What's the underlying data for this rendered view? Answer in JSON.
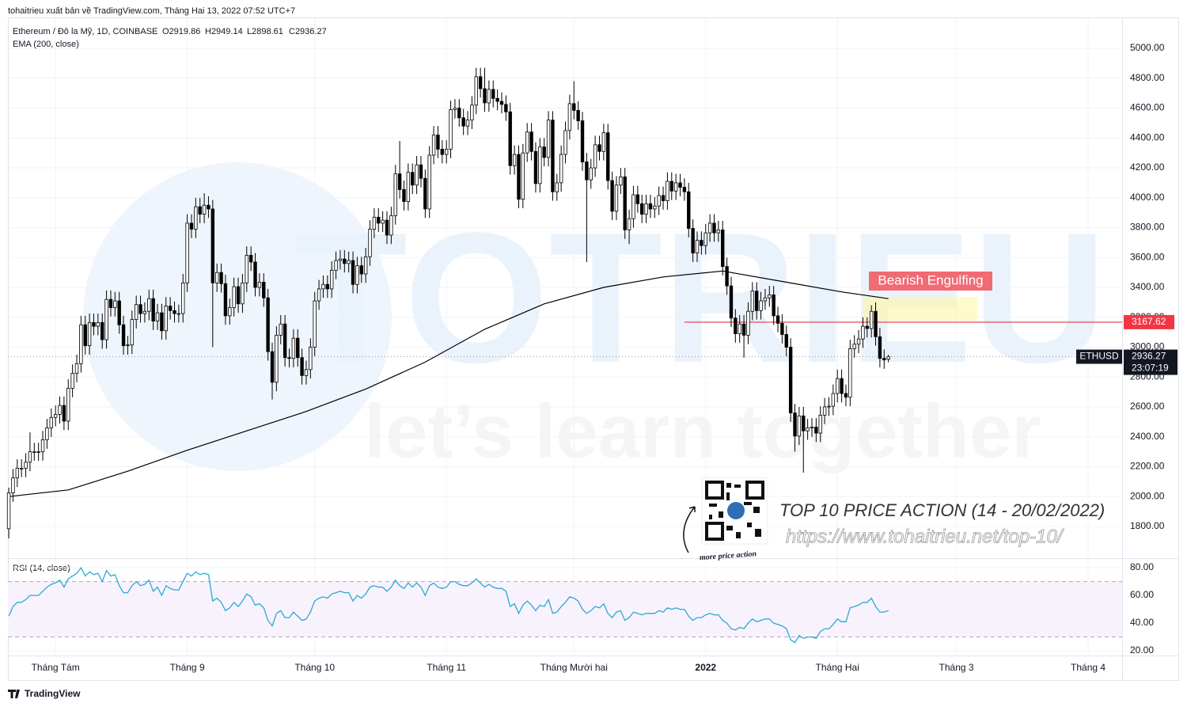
{
  "header": "tohaitrieu xuất bản về TradingView.com, Tháng Hai 13, 2022 07:52 UTC+7",
  "footer": "TradingView",
  "chart_data": {
    "type": "candlestick",
    "symbol": "Ethereum / Đô la Mỹ, 1D, COINBASE",
    "ohlc_labels": [
      "O2919.86",
      "H2949.14",
      "L2898.61",
      "C2936.27"
    ],
    "ticker": "ETHUSD",
    "countdown": "23:07:19",
    "xlim": [
      -0.2,
      262
    ],
    "xticks": [
      {
        "value": 11,
        "label": "Tháng Tám"
      },
      {
        "value": 42,
        "label": "Tháng 9"
      },
      {
        "value": 72,
        "label": "Tháng 10"
      },
      {
        "value": 103,
        "label": "Tháng 11"
      },
      {
        "value": 133,
        "label": "Tháng Mười hai"
      },
      {
        "value": 164,
        "label": "2022"
      },
      {
        "value": 195,
        "label": "Tháng Hai"
      },
      {
        "value": 223,
        "label": "Tháng 3"
      },
      {
        "value": 254,
        "label": "Tháng 4"
      }
    ],
    "ylim": [
      1588,
      5207
    ],
    "yticks": [
      {
        "value": 1800,
        "label": "1800.00"
      },
      {
        "value": 2000,
        "label": "2000.00"
      },
      {
        "value": 2200,
        "label": "2200.00"
      },
      {
        "value": 2400,
        "label": "2400.00"
      },
      {
        "value": 2600,
        "label": "2600.00"
      },
      {
        "value": 2800,
        "label": "2800.00"
      },
      {
        "value": 3000,
        "label": "3000.00"
      },
      {
        "value": 3200,
        "label": "3200.00"
      },
      {
        "value": 3400,
        "label": "3400.00"
      },
      {
        "value": 3600,
        "label": "3600.00"
      },
      {
        "value": 3800,
        "label": "3800.00"
      },
      {
        "value": 4000,
        "label": "4000.00"
      },
      {
        "value": 4200,
        "label": "4200.00"
      },
      {
        "value": 4400,
        "label": "4400.00"
      },
      {
        "value": 4600,
        "label": "4600.00"
      },
      {
        "value": 4800,
        "label": "4800.00"
      },
      {
        "value": 5000,
        "label": "5000.00"
      }
    ],
    "grid": true,
    "up_color": "#ffffff",
    "down_color": "#000000",
    "candles": {
      "open": [
        1785,
        2025,
        2125,
        2190,
        2190,
        2230,
        2300,
        2300,
        2300,
        2380,
        2460,
        2530,
        2550,
        2610,
        2505,
        2725,
        2825,
        2890,
        3150,
        3010,
        3165,
        3140,
        3165,
        3050,
        3320,
        3265,
        3310,
        3150,
        3010,
        3015,
        3185,
        3285,
        3225,
        3240,
        3325,
        3175,
        3230,
        3110,
        3275,
        3245,
        3225,
        3225,
        3430,
        3830,
        3790,
        3940,
        3890,
        3950,
        3925,
        3430,
        3500,
        3425,
        3210,
        3265,
        3405,
        3290,
        3430,
        3615,
        3570,
        3400,
        3435,
        3330,
        2970,
        2765,
        3080,
        3155,
        2930,
        2925,
        3060,
        2930,
        2810,
        2850,
        3000,
        3310,
        3390,
        3420,
        3390,
        3515,
        3580,
        3590,
        3560,
        3580,
        3420,
        3545,
        3490,
        3605,
        3790,
        3870,
        3830,
        3850,
        3750,
        3880,
        4160,
        4055,
        3975,
        4170,
        4085,
        4220,
        4130,
        3925,
        4285,
        4420,
        4325,
        4290,
        4325,
        4590,
        4600,
        4535,
        4480,
        4520,
        4620,
        4810,
        4730,
        4635,
        4725,
        4665,
        4645,
        4625,
        4575,
        4215,
        4290,
        3990,
        4300,
        4440,
        4310,
        4095,
        4340,
        4270,
        4520,
        4040,
        4100,
        4290,
        4450,
        4630,
        4585,
        4515,
        4240,
        4120,
        4200,
        4355,
        4310,
        4435,
        4115,
        3910,
        4085,
        4140,
        3785,
        3860,
        4020,
        3960,
        3890,
        3960,
        3925,
        3945,
        4015,
        3980,
        4110,
        4045,
        4100,
        4070,
        4040,
        3795,
        3630,
        3715,
        3680,
        3765,
        3830,
        3765,
        3785,
        3540,
        3410,
        3195,
        3090,
        3155,
        3080,
        3240,
        3375,
        3245,
        3310,
        3330,
        3350,
        3210,
        3160,
        3085,
        3000,
        2560,
        2405,
        2540,
        2440,
        2460,
        2465,
        2425,
        2545,
        2600,
        2605,
        2690,
        2790,
        2690,
        2665,
        2990,
        3020,
        3055,
        3140,
        3125,
        3240,
        3070,
        2925,
        2919.86
      ],
      "high": [
        2060,
        2185,
        2250,
        2250,
        2290,
        2430,
        2360,
        2360,
        2440,
        2520,
        2590,
        2610,
        2670,
        2670,
        2785,
        2885,
        2950,
        3210,
        3210,
        3225,
        3225,
        3225,
        3225,
        3380,
        3380,
        3370,
        3370,
        3210,
        3075,
        3245,
        3345,
        3345,
        3300,
        3385,
        3385,
        3290,
        3290,
        3335,
        3335,
        3305,
        3285,
        3490,
        3890,
        3890,
        4000,
        4000,
        4030,
        4010,
        3985,
        3560,
        3560,
        3485,
        3325,
        3465,
        3465,
        3490,
        3675,
        3675,
        3630,
        3495,
        3495,
        3390,
        3030,
        3140,
        3215,
        3215,
        2990,
        3120,
        3120,
        2990,
        2910,
        3060,
        3370,
        3450,
        3480,
        3480,
        3575,
        3640,
        3650,
        3650,
        3640,
        3640,
        3605,
        3605,
        3665,
        3850,
        3930,
        3930,
        3910,
        3910,
        3940,
        4220,
        4380,
        4115,
        4230,
        4230,
        4280,
        4280,
        4190,
        4345,
        4480,
        4480,
        4385,
        4385,
        4650,
        4660,
        4660,
        4595,
        4580,
        4680,
        4870,
        4870,
        4870,
        4785,
        4785,
        4725,
        4705,
        4685,
        4635,
        4350,
        4350,
        4360,
        4500,
        4500,
        4370,
        4400,
        4400,
        4580,
        4580,
        4160,
        4350,
        4510,
        4690,
        4780,
        4645,
        4575,
        4300,
        4260,
        4415,
        4415,
        4495,
        4495,
        4175,
        4145,
        4200,
        4200,
        3920,
        4080,
        4080,
        4020,
        4020,
        4020,
        4005,
        4075,
        4075,
        4170,
        4170,
        4160,
        4160,
        4130,
        4100,
        3855,
        3775,
        3775,
        3825,
        3890,
        3890,
        3845,
        3845,
        3600,
        3470,
        3255,
        3215,
        3215,
        3300,
        3435,
        3435,
        3370,
        3390,
        3410,
        3410,
        3270,
        3220,
        3145,
        3060,
        2620,
        2600,
        2600,
        2520,
        2525,
        2525,
        2605,
        2660,
        2665,
        2750,
        2850,
        2850,
        2750,
        3050,
        3080,
        3115,
        3200,
        3200,
        3280,
        3300,
        3130,
        2985,
        2949.14
      ],
      "low": [
        1720,
        1965,
        2065,
        2130,
        2130,
        2170,
        2240,
        2240,
        2240,
        2320,
        2400,
        2470,
        2490,
        2445,
        2445,
        2665,
        2765,
        2830,
        2950,
        2950,
        3080,
        3080,
        2990,
        2990,
        3205,
        3205,
        3090,
        2950,
        2950,
        2955,
        3125,
        3165,
        3165,
        3180,
        3115,
        3115,
        3050,
        3050,
        3185,
        3165,
        3165,
        3165,
        3370,
        3730,
        3730,
        3830,
        3830,
        3865,
        3000,
        3370,
        3365,
        3150,
        3150,
        3205,
        3230,
        3230,
        3370,
        3510,
        3340,
        3340,
        3270,
        2910,
        2650,
        2705,
        3020,
        2870,
        2865,
        2865,
        2870,
        2750,
        2750,
        2790,
        2940,
        3250,
        3330,
        3330,
        3330,
        3455,
        3520,
        3500,
        3500,
        3360,
        3360,
        3430,
        3430,
        3545,
        3730,
        3770,
        3770,
        3690,
        3690,
        3820,
        3995,
        3915,
        3915,
        4025,
        4025,
        4070,
        3865,
        3865,
        4225,
        4265,
        4230,
        4230,
        4265,
        4530,
        4475,
        4420,
        4420,
        4460,
        4560,
        4670,
        4575,
        4575,
        4605,
        4585,
        4565,
        4515,
        4155,
        4155,
        3930,
        3930,
        4240,
        4250,
        4035,
        4035,
        4210,
        4210,
        3980,
        3980,
        4040,
        4230,
        4390,
        4525,
        4455,
        4180,
        3570,
        4060,
        4140,
        4250,
        4250,
        4055,
        3850,
        3850,
        4025,
        3725,
        3690,
        3800,
        3900,
        3830,
        3830,
        3865,
        3865,
        3885,
        3920,
        3920,
        3985,
        3985,
        4010,
        3980,
        3735,
        3570,
        3570,
        3620,
        3620,
        3705,
        3705,
        3705,
        3480,
        3350,
        3135,
        3030,
        3030,
        2930,
        3020,
        3180,
        3185,
        3185,
        3250,
        3270,
        3150,
        3100,
        3025,
        2940,
        2500,
        2300,
        2345,
        2160,
        2380,
        2400,
        2365,
        2365,
        2485,
        2540,
        2545,
        2630,
        2630,
        2605,
        2605,
        2930,
        2960,
        2995,
        3065,
        3065,
        3010,
        2865,
        2855,
        2898.61
      ],
      "close": [
        2025,
        2125,
        2190,
        2190,
        2230,
        2300,
        2300,
        2300,
        2380,
        2460,
        2530,
        2550,
        2610,
        2505,
        2725,
        2825,
        2890,
        3150,
        3010,
        3165,
        3140,
        3165,
        3050,
        3320,
        3265,
        3310,
        3150,
        3010,
        3015,
        3185,
        3285,
        3225,
        3240,
        3325,
        3175,
        3230,
        3110,
        3275,
        3245,
        3225,
        3225,
        3430,
        3830,
        3790,
        3940,
        3890,
        3950,
        3925,
        3430,
        3500,
        3425,
        3210,
        3265,
        3405,
        3290,
        3430,
        3615,
        3570,
        3400,
        3435,
        3330,
        2970,
        2765,
        3080,
        3155,
        2930,
        2925,
        3060,
        2930,
        2810,
        2850,
        3000,
        3310,
        3390,
        3420,
        3390,
        3515,
        3580,
        3590,
        3560,
        3580,
        3420,
        3545,
        3490,
        3605,
        3790,
        3870,
        3830,
        3850,
        3750,
        3880,
        4160,
        4055,
        3975,
        4170,
        4085,
        4220,
        4130,
        3925,
        4285,
        4420,
        4325,
        4290,
        4325,
        4590,
        4600,
        4535,
        4480,
        4520,
        4620,
        4810,
        4730,
        4635,
        4725,
        4665,
        4645,
        4625,
        4575,
        4215,
        4290,
        3990,
        4300,
        4440,
        4310,
        4095,
        4340,
        4270,
        4520,
        4040,
        4100,
        4290,
        4450,
        4630,
        4585,
        4515,
        4240,
        4120,
        4200,
        4355,
        4310,
        4435,
        4115,
        3910,
        4085,
        4140,
        3785,
        3860,
        4020,
        3960,
        3890,
        3960,
        3925,
        3945,
        4015,
        3980,
        4110,
        4045,
        4100,
        4070,
        4040,
        3795,
        3630,
        3715,
        3680,
        3765,
        3830,
        3765,
        3785,
        3540,
        3410,
        3195,
        3090,
        3155,
        3080,
        3240,
        3375,
        3245,
        3310,
        3330,
        3350,
        3210,
        3160,
        3085,
        3000,
        2560,
        2405,
        2540,
        2440,
        2460,
        2465,
        2425,
        2545,
        2600,
        2605,
        2690,
        2790,
        2690,
        2665,
        2990,
        3020,
        3055,
        3140,
        3125,
        3240,
        3070,
        2925,
        2915,
        2936.27
      ]
    },
    "ema": {
      "name": "EMA (200, close)",
      "color": "#000000",
      "x": [
        0,
        14,
        28,
        42,
        56,
        70,
        84,
        98,
        112,
        126,
        140,
        154,
        168,
        182,
        196,
        207
      ],
      "values": [
        2000,
        2045,
        2170,
        2310,
        2440,
        2570,
        2720,
        2900,
        3120,
        3290,
        3400,
        3470,
        3510,
        3440,
        3370,
        3325
      ]
    },
    "level": {
      "value": 3167.62,
      "x": 159,
      "color": "#f23645"
    },
    "zone": {
      "x": [
        201,
        228
      ],
      "y": [
        3178,
        3336
      ],
      "color": "#fff59d"
    },
    "annotation": "Bearish Engulfing",
    "rsi": {
      "name": "RSI (14, close)",
      "color": "#2aaad1",
      "ylim": [
        16.6,
        86.9
      ],
      "bands": [
        30,
        70
      ],
      "yticks": [
        {
          "value": 20,
          "label": "20.00"
        },
        {
          "value": 40,
          "label": "40.00"
        },
        {
          "value": 60,
          "label": "60.00"
        },
        {
          "value": 80,
          "label": "80.00"
        }
      ],
      "values": [
        45,
        52,
        55,
        55,
        57,
        60,
        60,
        60,
        63,
        66,
        68,
        69,
        71,
        66,
        72,
        74,
        76,
        80,
        74,
        77,
        75,
        76,
        70,
        78,
        74,
        75,
        67,
        62,
        62,
        67,
        70,
        67,
        68,
        71,
        63,
        66,
        60,
        67,
        65,
        64,
        64,
        70,
        76,
        74,
        77,
        75,
        76,
        75,
        56,
        58,
        55,
        49,
        51,
        55,
        52,
        56,
        61,
        59,
        53,
        54,
        51,
        42,
        38,
        47,
        49,
        44,
        44,
        48,
        45,
        42,
        43,
        48,
        56,
        58,
        59,
        58,
        61,
        62,
        63,
        62,
        62,
        56,
        60,
        58,
        61,
        66,
        67,
        66,
        66,
        63,
        66,
        71,
        67,
        65,
        69,
        66,
        69,
        66,
        60,
        67,
        69,
        66,
        65,
        66,
        70,
        70,
        68,
        67,
        67,
        69,
        72,
        69,
        66,
        68,
        66,
        65,
        65,
        63,
        52,
        54,
        47,
        53,
        56,
        53,
        49,
        53,
        52,
        57,
        47,
        48,
        52,
        55,
        59,
        58,
        56,
        50,
        47,
        49,
        52,
        51,
        54,
        47,
        44,
        48,
        49,
        42,
        44,
        48,
        47,
        46,
        47,
        47,
        47,
        49,
        48,
        51,
        50,
        51,
        50,
        50,
        45,
        42,
        44,
        44,
        46,
        47,
        46,
        46,
        42,
        40,
        36,
        35,
        37,
        36,
        40,
        43,
        41,
        42,
        43,
        43,
        40,
        39,
        38,
        36,
        28,
        26,
        31,
        29,
        30,
        30,
        29,
        34,
        36,
        36,
        39,
        43,
        41,
        41,
        51,
        52,
        53,
        55,
        55,
        58,
        52,
        48,
        48,
        49
      ]
    },
    "watermark": {
      "brand": "TOTRIEU",
      "slogan": "let’s learn together"
    },
    "promo": {
      "title": "TOP 10 PRICE ACTION (14 - 20/02/2022)",
      "url": "https://www.tohaitrieu.net/top-10/",
      "caption": "more price action"
    }
  }
}
